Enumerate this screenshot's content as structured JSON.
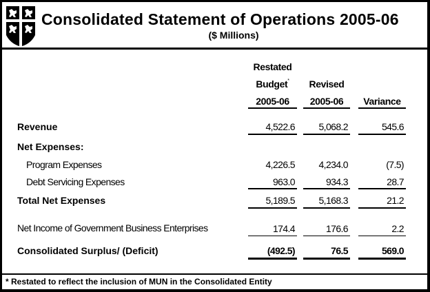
{
  "header": {
    "title": "Consolidated Statement of Operations 2005-06",
    "subtitle": "($ Millions)",
    "logo": "coat-of-arms-shield"
  },
  "columns": [
    {
      "line1": "Restated",
      "line2": "Budget",
      "marker": "*",
      "line3": "2005-06"
    },
    {
      "line2": "Revised",
      "line3": "2005-06"
    },
    {
      "line3": "Variance"
    }
  ],
  "rows": {
    "revenue": {
      "label": "Revenue",
      "values": [
        "4,522.6",
        "5,068.2",
        "545.6"
      ]
    },
    "net_expenses": {
      "label": "Net Expenses:"
    },
    "program": {
      "label": "Program Expenses",
      "values": [
        "4,226.5",
        "4,234.0",
        "(7.5)"
      ]
    },
    "debt": {
      "label": "Debt Servicing Expenses",
      "values": [
        "963.0",
        "934.3",
        "28.7"
      ]
    },
    "total": {
      "label": "Total Net Expenses",
      "values": [
        "5,189.5",
        "5,168.3",
        "21.2"
      ]
    },
    "gbe": {
      "label": "Net Income of Government Business Enterprises",
      "values": [
        "174.4",
        "176.6",
        "2.2"
      ]
    },
    "surplus": {
      "label": "Consolidated Surplus/ (Deficit)",
      "values": [
        "(492.5)",
        "76.5",
        "569.0"
      ]
    }
  },
  "footnote": "* Restated to reflect the inclusion of MUN in the Consolidated Entity"
}
